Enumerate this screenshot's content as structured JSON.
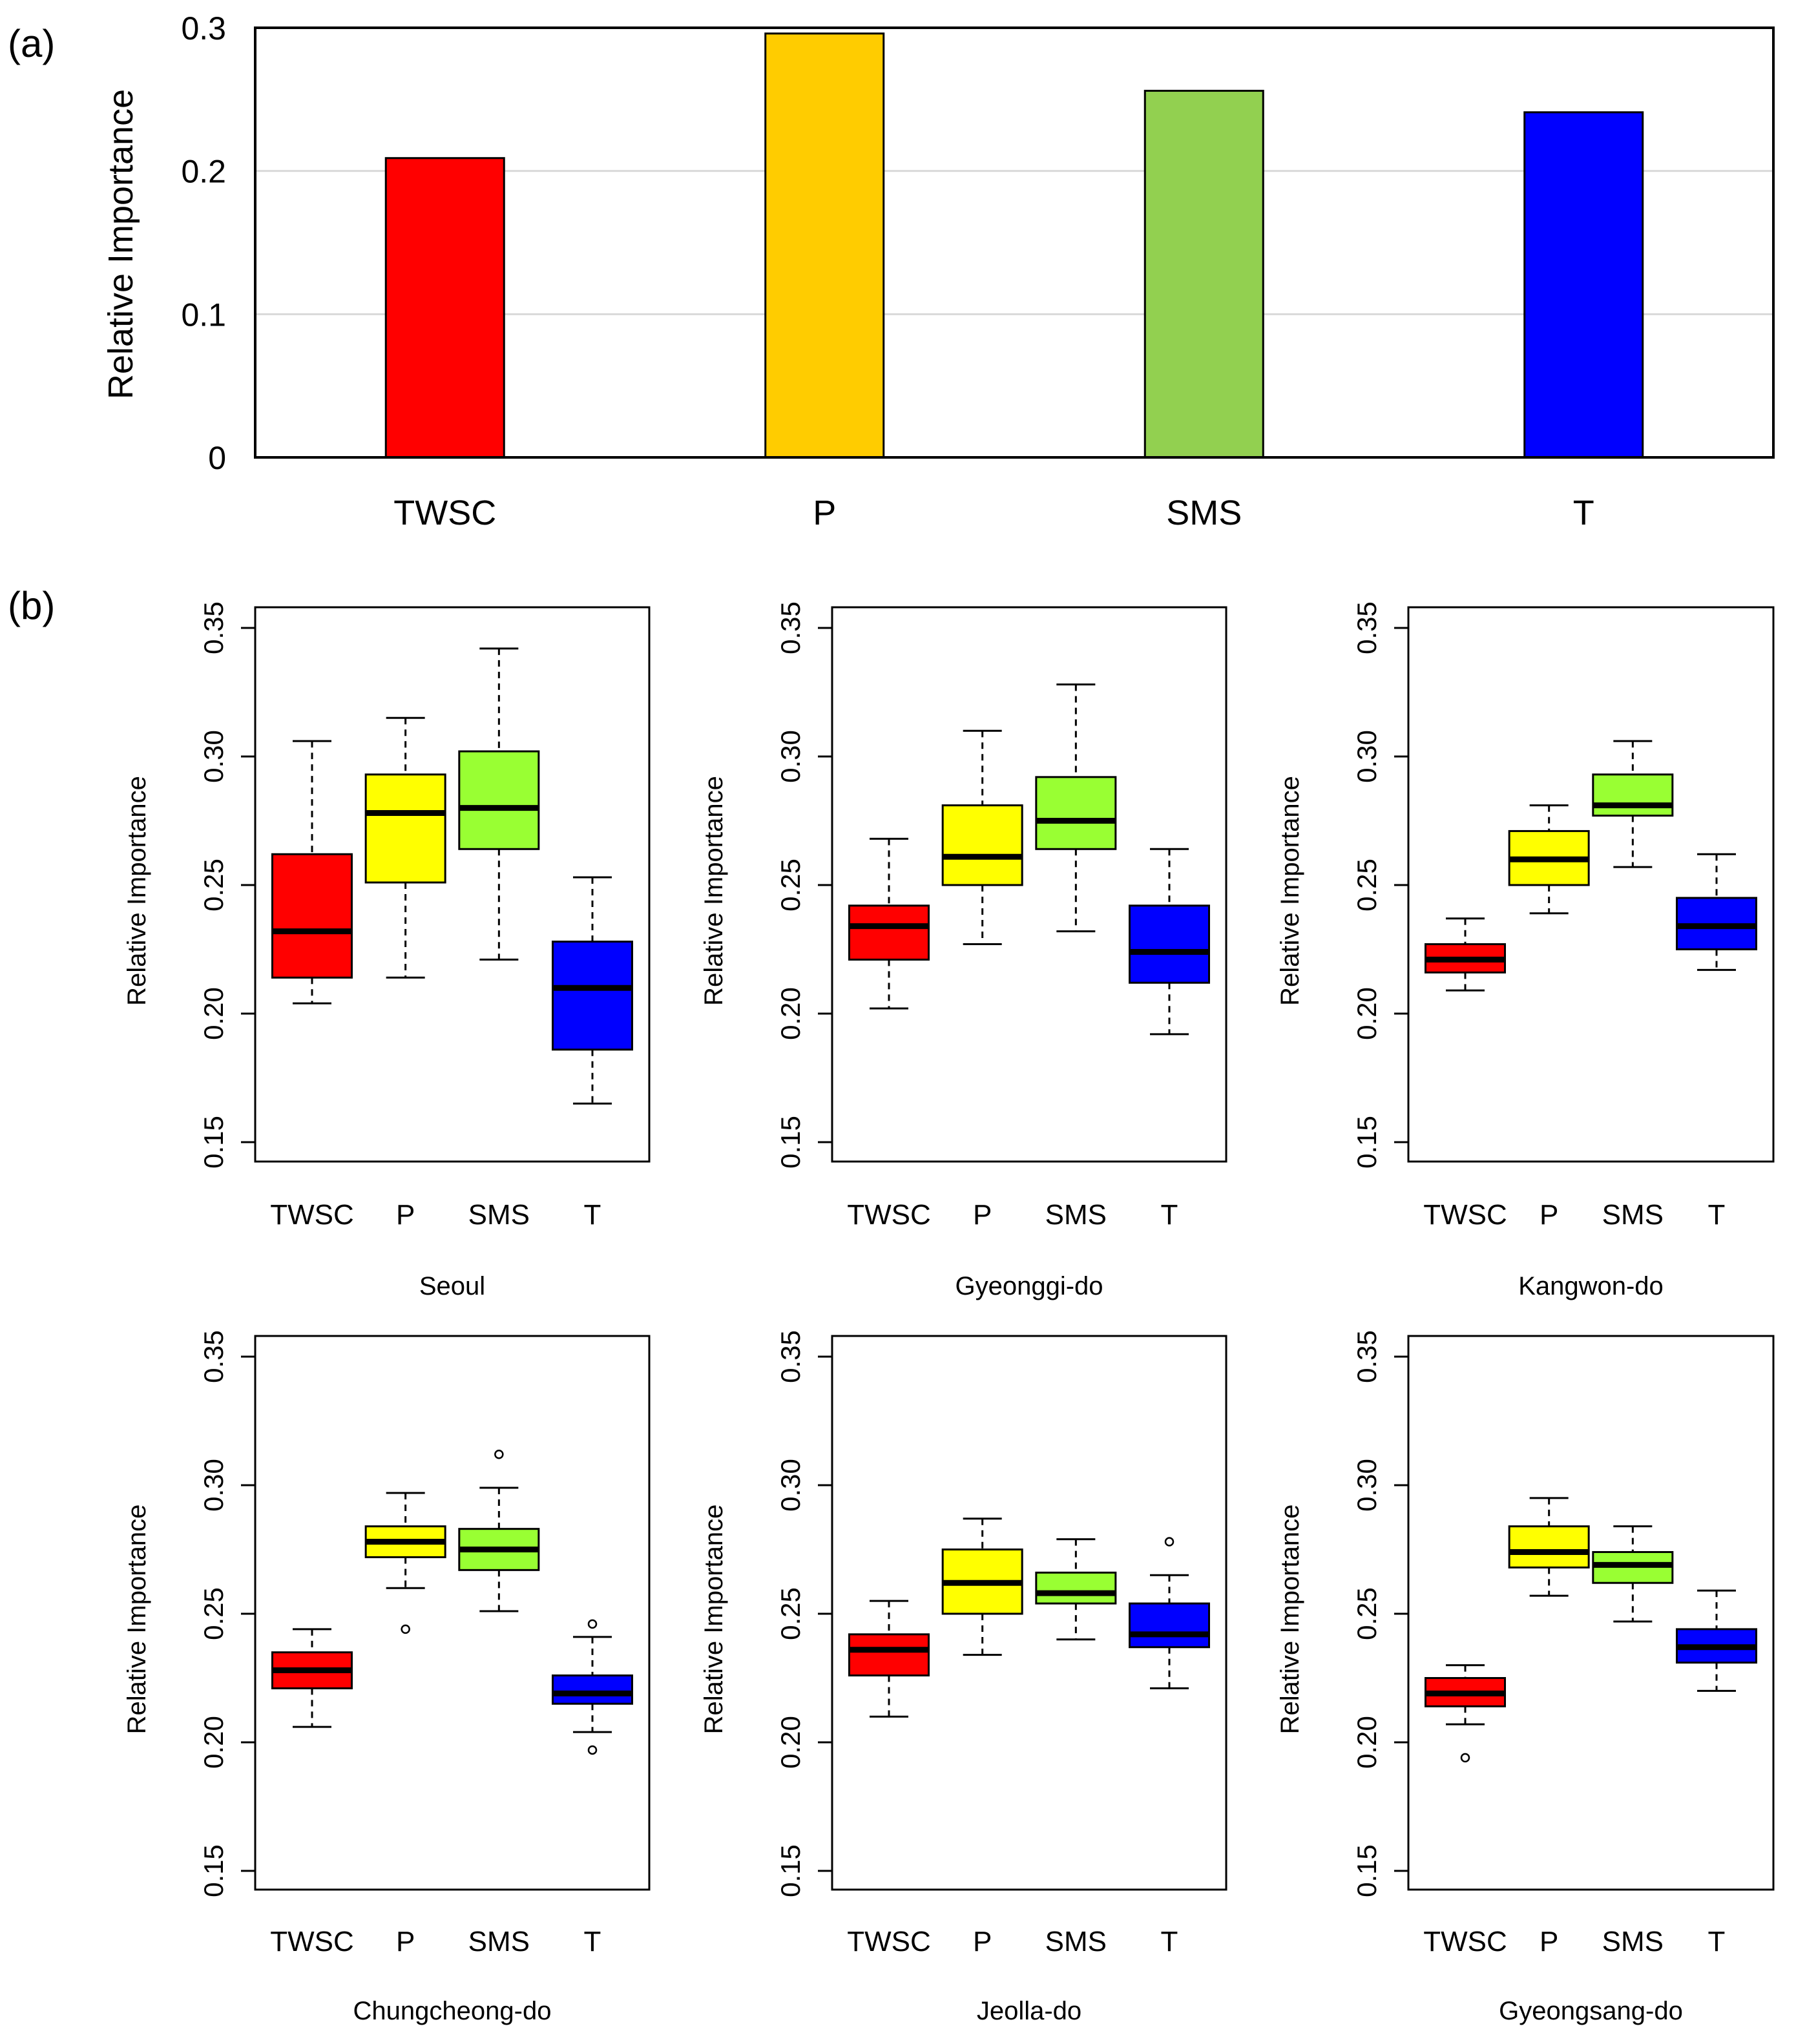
{
  "chart_data": [
    {
      "panel_label": "(a)",
      "type": "bar",
      "categories": [
        "TWSC",
        "P",
        "SMS",
        "T"
      ],
      "values": [
        0.209,
        0.296,
        0.256,
        0.241
      ],
      "colors": [
        "#ff0000",
        "#ffcc00",
        "#92d050",
        "#0000ff"
      ],
      "ylabel": "Relative Importance",
      "xlabel": "",
      "ylim": [
        0,
        0.3
      ],
      "yticks": [
        "0",
        "0.1",
        "0.2",
        "0.3"
      ],
      "grid": true
    },
    {
      "panel_label": "(b)",
      "type": "boxplot",
      "ylabel": "Relative Importance",
      "ylim": [
        0.15,
        0.35
      ],
      "yticks": [
        "0.15",
        "0.20",
        "0.25",
        "0.30",
        "0.35"
      ],
      "categories": [
        "TWSC",
        "P",
        "SMS",
        "T"
      ],
      "colors": [
        "#ff0000",
        "#ffff00",
        "#99ff33",
        "#0000ff"
      ],
      "panels": [
        {
          "title": "Seoul",
          "boxes": [
            {
              "whislo": 0.204,
              "q1": 0.214,
              "med": 0.232,
              "q3": 0.262,
              "whishi": 0.306,
              "outliers": []
            },
            {
              "whislo": 0.214,
              "q1": 0.251,
              "med": 0.278,
              "q3": 0.293,
              "whishi": 0.315,
              "outliers": []
            },
            {
              "whislo": 0.221,
              "q1": 0.264,
              "med": 0.28,
              "q3": 0.302,
              "whishi": 0.342,
              "outliers": []
            },
            {
              "whislo": 0.165,
              "q1": 0.186,
              "med": 0.21,
              "q3": 0.228,
              "whishi": 0.253,
              "outliers": []
            }
          ]
        },
        {
          "title": "Gyeonggi-do",
          "boxes": [
            {
              "whislo": 0.202,
              "q1": 0.221,
              "med": 0.234,
              "q3": 0.242,
              "whishi": 0.268,
              "outliers": []
            },
            {
              "whislo": 0.227,
              "q1": 0.25,
              "med": 0.261,
              "q3": 0.281,
              "whishi": 0.31,
              "outliers": []
            },
            {
              "whislo": 0.232,
              "q1": 0.264,
              "med": 0.275,
              "q3": 0.292,
              "whishi": 0.328,
              "outliers": []
            },
            {
              "whislo": 0.192,
              "q1": 0.212,
              "med": 0.224,
              "q3": 0.242,
              "whishi": 0.264,
              "outliers": []
            }
          ]
        },
        {
          "title": "Kangwon-do",
          "boxes": [
            {
              "whislo": 0.209,
              "q1": 0.216,
              "med": 0.221,
              "q3": 0.227,
              "whishi": 0.237,
              "outliers": []
            },
            {
              "whislo": 0.239,
              "q1": 0.25,
              "med": 0.26,
              "q3": 0.271,
              "whishi": 0.281,
              "outliers": []
            },
            {
              "whislo": 0.257,
              "q1": 0.277,
              "med": 0.281,
              "q3": 0.293,
              "whishi": 0.306,
              "outliers": []
            },
            {
              "whislo": 0.217,
              "q1": 0.225,
              "med": 0.234,
              "q3": 0.245,
              "whishi": 0.262,
              "outliers": []
            }
          ]
        },
        {
          "title": "Chungcheong-do",
          "boxes": [
            {
              "whislo": 0.206,
              "q1": 0.221,
              "med": 0.228,
              "q3": 0.235,
              "whishi": 0.244,
              "outliers": []
            },
            {
              "whislo": 0.26,
              "q1": 0.272,
              "med": 0.278,
              "q3": 0.284,
              "whishi": 0.297,
              "outliers": [
                0.244
              ]
            },
            {
              "whislo": 0.251,
              "q1": 0.267,
              "med": 0.275,
              "q3": 0.283,
              "whishi": 0.299,
              "outliers": [
                0.312
              ]
            },
            {
              "whislo": 0.204,
              "q1": 0.215,
              "med": 0.219,
              "q3": 0.226,
              "whishi": 0.241,
              "outliers": [
                0.246,
                0.197
              ]
            }
          ]
        },
        {
          "title": "Jeolla-do",
          "boxes": [
            {
              "whislo": 0.21,
              "q1": 0.226,
              "med": 0.236,
              "q3": 0.242,
              "whishi": 0.255,
              "outliers": []
            },
            {
              "whislo": 0.234,
              "q1": 0.25,
              "med": 0.262,
              "q3": 0.275,
              "whishi": 0.287,
              "outliers": []
            },
            {
              "whislo": 0.24,
              "q1": 0.254,
              "med": 0.258,
              "q3": 0.266,
              "whishi": 0.279,
              "outliers": []
            },
            {
              "whislo": 0.221,
              "q1": 0.237,
              "med": 0.242,
              "q3": 0.254,
              "whishi": 0.265,
              "outliers": [
                0.278
              ]
            }
          ]
        },
        {
          "title": "Gyeongsang-do",
          "boxes": [
            {
              "whislo": 0.207,
              "q1": 0.214,
              "med": 0.219,
              "q3": 0.225,
              "whishi": 0.23,
              "outliers": [
                0.194
              ]
            },
            {
              "whislo": 0.257,
              "q1": 0.268,
              "med": 0.274,
              "q3": 0.284,
              "whishi": 0.295,
              "outliers": []
            },
            {
              "whislo": 0.247,
              "q1": 0.262,
              "med": 0.269,
              "q3": 0.274,
              "whishi": 0.284,
              "outliers": []
            },
            {
              "whislo": 0.22,
              "q1": 0.231,
              "med": 0.237,
              "q3": 0.244,
              "whishi": 0.259,
              "outliers": []
            }
          ]
        }
      ]
    }
  ]
}
